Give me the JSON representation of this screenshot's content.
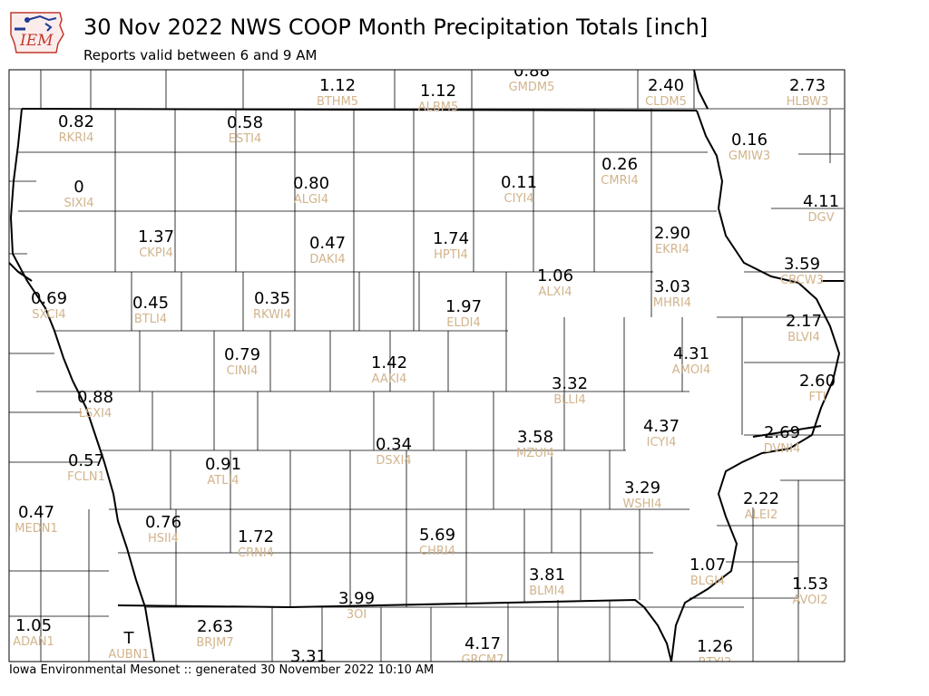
{
  "header": {
    "logo_text": "IEM",
    "title": "30 Nov 2022 NWS COOP Month Precipitation Totals [inch]",
    "subtitle": "Reports valid between 6 and 9 AM"
  },
  "footer": {
    "text": "Iowa Environmental Mesonet :: generated 30 November 2022 10:10 AM"
  },
  "colors": {
    "value_text": "#000000",
    "station_text": "#d2b48c",
    "state_border": "#000000",
    "county_border": "#000000"
  },
  "stations": [
    {
      "id": "BTHM5",
      "value": "1.12"
    },
    {
      "id": "ALBM5",
      "value": "1.12"
    },
    {
      "id": "GMDM5",
      "value": "0.88"
    },
    {
      "id": "CLDM5",
      "value": "2.40"
    },
    {
      "id": "HLBW3",
      "value": "2.73"
    },
    {
      "id": "RKRI4",
      "value": "0.82"
    },
    {
      "id": "ESTI4",
      "value": "0.58"
    },
    {
      "id": "GMIW3",
      "value": "0.16"
    },
    {
      "id": "SIXI4",
      "value": "0"
    },
    {
      "id": "ALGI4",
      "value": "0.80"
    },
    {
      "id": "CIYI4",
      "value": "0.11"
    },
    {
      "id": "CMRI4",
      "value": "0.26"
    },
    {
      "id": "DGV",
      "value": "4.11"
    },
    {
      "id": "CKPI4",
      "value": "1.37"
    },
    {
      "id": "DAKI4",
      "value": "0.47"
    },
    {
      "id": "HPTI4",
      "value": "1.74"
    },
    {
      "id": "EKRI4",
      "value": "2.90"
    },
    {
      "id": "CBCW3",
      "value": "3.59"
    },
    {
      "id": "ALXI4",
      "value": "1.06"
    },
    {
      "id": "MHRI4",
      "value": "3.03"
    },
    {
      "id": "SXCI4",
      "value": "0.69"
    },
    {
      "id": "BTLI4",
      "value": "0.45"
    },
    {
      "id": "RKWI4",
      "value": "0.35"
    },
    {
      "id": "ELDI4",
      "value": "1.97"
    },
    {
      "id": "BLVI4",
      "value": "2.17"
    },
    {
      "id": "CINI4",
      "value": "0.79"
    },
    {
      "id": "AAKI4",
      "value": "1.42"
    },
    {
      "id": "AMOI4",
      "value": "4.31"
    },
    {
      "id": "BLLI4",
      "value": "3.32"
    },
    {
      "id": "FTI",
      "value": "2.60"
    },
    {
      "id": "LSXI4",
      "value": "0.88"
    },
    {
      "id": "ICYI4",
      "value": "4.37"
    },
    {
      "id": "DSXI4",
      "value": "0.34"
    },
    {
      "id": "MZUI4",
      "value": "3.58"
    },
    {
      "id": "DVNI4",
      "value": "2.69"
    },
    {
      "id": "FCLN1",
      "value": "0.57"
    },
    {
      "id": "ATLI4",
      "value": "0.91"
    },
    {
      "id": "WSHI4",
      "value": "3.29"
    },
    {
      "id": "ALEI2",
      "value": "2.22"
    },
    {
      "id": "MEDN1",
      "value": "0.47"
    },
    {
      "id": "HSII4",
      "value": "0.76"
    },
    {
      "id": "CRNI4",
      "value": "1.72"
    },
    {
      "id": "CHRI4",
      "value": "5.69"
    },
    {
      "id": "BLMI4",
      "value": "3.81"
    },
    {
      "id": "BLGI4",
      "value": "1.07"
    },
    {
      "id": "AVOI2",
      "value": "1.53"
    },
    {
      "id": "3OI",
      "value": "3.99"
    },
    {
      "id": "ADAN1",
      "value": "1.05"
    },
    {
      "id": "AUBN1",
      "value": "T"
    },
    {
      "id": "BRJM7",
      "value": "2.63"
    },
    {
      "id": "GRCM7",
      "value": "4.17"
    },
    {
      "id": "BTYI2",
      "value": "1.26"
    },
    {
      "id": "",
      "value": "3.31"
    }
  ]
}
